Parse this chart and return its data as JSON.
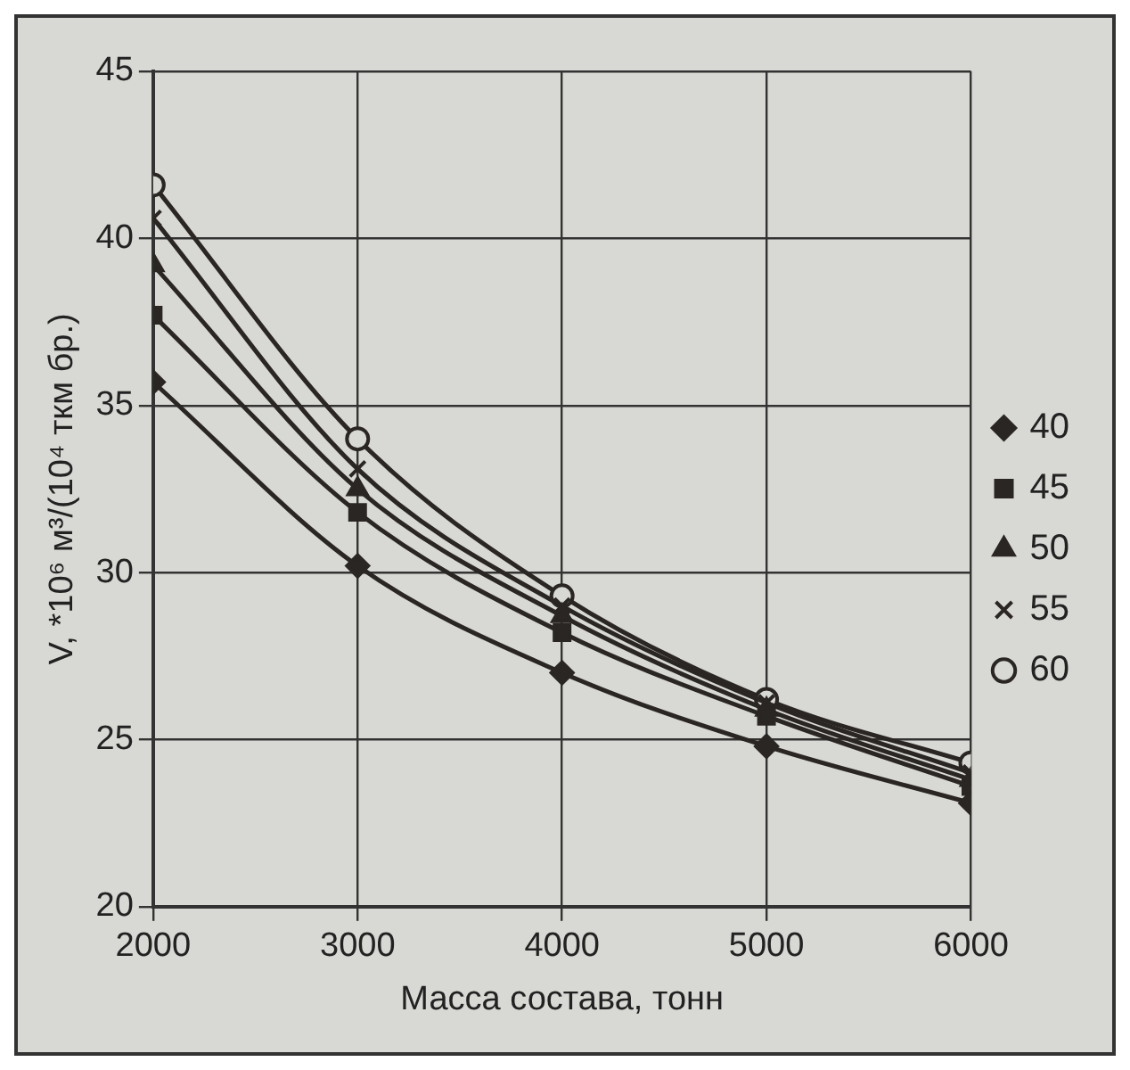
{
  "chart_data": {
    "type": "line",
    "xlabel": "Масса состава, тонн",
    "ylabel": "V, *10⁶ м³/(10⁴ ткм бр.)",
    "x": [
      2000,
      3000,
      4000,
      5000,
      6000
    ],
    "xlim": [
      2000,
      6000
    ],
    "xticks": [
      2000,
      3000,
      4000,
      5000,
      6000
    ],
    "ylim": [
      20,
      45
    ],
    "yticks": [
      20,
      25,
      30,
      35,
      40,
      45
    ],
    "grid": true,
    "legend": "right",
    "series": [
      {
        "name": "40",
        "color": "#2a2624",
        "marker": "diamond",
        "values": [
          35.7,
          30.2,
          27.0,
          24.8,
          23.1
        ]
      },
      {
        "name": "45",
        "color": "#2a2624",
        "marker": "square",
        "values": [
          37.7,
          31.8,
          28.2,
          25.7,
          23.6
        ]
      },
      {
        "name": "50",
        "color": "#2a2624",
        "marker": "triangle",
        "values": [
          39.2,
          32.5,
          28.7,
          25.9,
          23.8
        ]
      },
      {
        "name": "55",
        "color": "#2a2624",
        "marker": "cross",
        "values": [
          40.6,
          33.1,
          29.0,
          26.1,
          24.0
        ]
      },
      {
        "name": "60",
        "color": "#2a2624",
        "marker": "circle",
        "values": [
          41.6,
          34.0,
          29.3,
          26.2,
          24.3
        ]
      }
    ]
  }
}
